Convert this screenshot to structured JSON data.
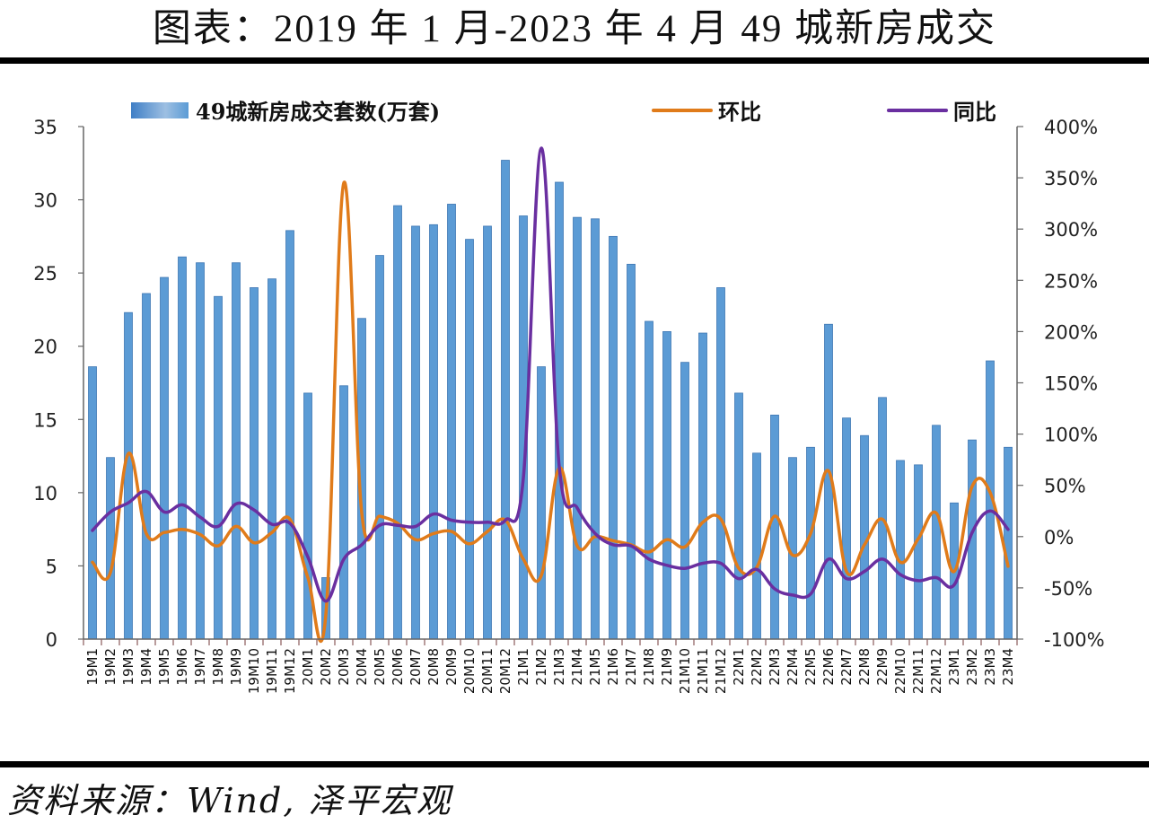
{
  "header": {
    "title": "图表：2019 年 1 月-2023 年 4 月 49 城新房成交"
  },
  "footer": {
    "source": "资料来源：Wind, 泽平宏观"
  },
  "colors": {
    "bars": "#5b9bd5",
    "bars_edge": "#3f77b3",
    "mom": "#e07b1a",
    "yoy": "#6a2fa0",
    "axis": "#666666"
  },
  "chart_data": {
    "type": "bar",
    "title": "2019年1月-2023年4月49城新房成交",
    "xlabel": "",
    "ylabel": "",
    "y2label": "",
    "ylim": [
      0,
      35
    ],
    "y2lim": [
      -1.0,
      4.0
    ],
    "yticks": [
      "0",
      "5",
      "10",
      "15",
      "20",
      "25",
      "30",
      "35"
    ],
    "y2ticks": [
      "-100%",
      "-50%",
      "0%",
      "50%",
      "100%",
      "150%",
      "200%",
      "250%",
      "300%",
      "350%",
      "400%"
    ],
    "grid": false,
    "legend_position": "top",
    "legend": [
      {
        "name": "49城新房成交套数(万套)",
        "type": "bar",
        "color": "#5b9bd5"
      },
      {
        "name": "环比",
        "type": "line",
        "color": "#e07b1a"
      },
      {
        "name": "同比",
        "type": "line",
        "color": "#6a2fa0"
      }
    ],
    "categories": [
      "19M1",
      "19M2",
      "19M3",
      "19M4",
      "19M5",
      "19M6",
      "19M7",
      "19M8",
      "19M9",
      "19M10",
      "19M11",
      "19M12",
      "20M1",
      "20M2",
      "20M3",
      "20M4",
      "20M5",
      "20M6",
      "20M7",
      "20M8",
      "20M9",
      "20M10",
      "20M11",
      "20M12",
      "21M1",
      "21M2",
      "21M3",
      "21M4",
      "21M5",
      "21M6",
      "21M7",
      "21M8",
      "21M9",
      "21M10",
      "21M11",
      "21M12",
      "22M1",
      "22M2",
      "22M3",
      "22M4",
      "22M5",
      "22M6",
      "22M7",
      "22M8",
      "22M9",
      "22M10",
      "22M11",
      "22M12",
      "23M1",
      "23M2",
      "23M3",
      "23M4"
    ],
    "series": [
      {
        "name": "49城新房成交套数(万套)",
        "type": "bar",
        "axis": "left",
        "values": [
          18.6,
          12.4,
          22.3,
          23.6,
          24.7,
          26.1,
          25.7,
          23.4,
          25.7,
          24.0,
          24.6,
          27.9,
          16.8,
          4.2,
          17.3,
          21.9,
          26.2,
          29.6,
          28.2,
          28.3,
          29.7,
          27.3,
          28.2,
          32.7,
          28.9,
          18.6,
          31.2,
          28.8,
          28.7,
          27.5,
          25.6,
          21.7,
          21.0,
          18.9,
          20.9,
          24.0,
          16.8,
          12.7,
          15.3,
          12.4,
          13.1,
          21.5,
          15.1,
          13.9,
          16.5,
          12.2,
          11.9,
          14.6,
          9.3,
          13.6,
          19.0,
          13.1
        ]
      },
      {
        "name": "环比",
        "type": "line",
        "axis": "right",
        "unit": "%",
        "values": [
          -25,
          -35,
          81,
          3,
          4,
          7,
          2,
          -9,
          10,
          -6,
          4,
          17,
          -40,
          -76,
          345,
          23,
          20,
          13,
          -3,
          3,
          5,
          -7,
          5,
          16,
          -22,
          -38,
          67,
          -9,
          0,
          -4,
          -8,
          -15,
          -3,
          -10,
          14,
          17,
          -31,
          -30,
          20,
          -18,
          3,
          64,
          -34,
          -8,
          17,
          -25,
          -2,
          23,
          -34,
          49,
          43,
          -29
        ]
      },
      {
        "name": "同比",
        "type": "line",
        "axis": "right",
        "unit": "%",
        "values": [
          6,
          24,
          33,
          44,
          24,
          31,
          19,
          10,
          32,
          26,
          12,
          13,
          -20,
          -63,
          -22,
          -8,
          11,
          11,
          10,
          22,
          16,
          14,
          14,
          16,
          57,
          379,
          68,
          28,
          3,
          -8,
          -9,
          -22,
          -28,
          -31,
          -26,
          -26,
          -41,
          -32,
          -51,
          -57,
          -56,
          -22,
          -41,
          -34,
          -22,
          -37,
          -43,
          -40,
          -47,
          4,
          25,
          7
        ]
      }
    ]
  }
}
